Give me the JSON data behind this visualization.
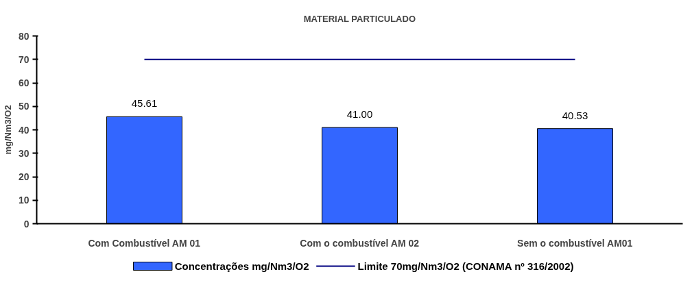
{
  "chart_data": {
    "type": "bar",
    "title": "MATERIAL PARTICULADO",
    "ylabel": "mg/Nm3/O2",
    "categories": [
      "Com Combustível AM 01",
      "Com o combustível AM 02",
      "Sem o combustível AM01"
    ],
    "series": [
      {
        "name": "Concentrações mg/Nm3/O2",
        "color": "#3366ff",
        "values": [
          45.61,
          41.0,
          40.53
        ],
        "value_labels": [
          "45.61",
          "41.00",
          "40.53"
        ]
      },
      {
        "name": "Limite 70mg/Nm3/O2 (CONAMA nº 316/2002)",
        "type": "line",
        "color": "#000080",
        "values": [
          70,
          70,
          70
        ]
      }
    ],
    "ylim": [
      0,
      80
    ],
    "yticks": [
      0,
      10,
      20,
      30,
      40,
      50,
      60,
      70,
      80
    ],
    "grid": false,
    "legend": "bottom"
  }
}
